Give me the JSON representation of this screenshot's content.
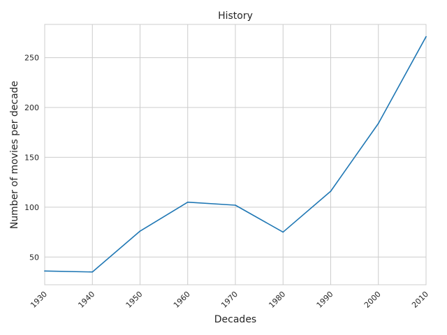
{
  "chart_data": {
    "type": "line",
    "title": "History",
    "xlabel": "Decades",
    "ylabel": "Number of movies per decade",
    "x": [
      1930,
      1940,
      1950,
      1960,
      1970,
      1980,
      1990,
      2000,
      2010
    ],
    "series": [
      {
        "values": [
          36,
          35,
          76,
          105,
          102,
          75,
          116,
          184,
          271
        ]
      }
    ],
    "xlim": [
      1930,
      2010
    ],
    "ylim": [
      22.2,
      283.3
    ],
    "xticks": [
      1930,
      1940,
      1950,
      1960,
      1970,
      1980,
      1990,
      2000,
      2010
    ],
    "xtick_labels": [
      "1930",
      "1940",
      "1950",
      "1960",
      "1970",
      "1980",
      "1990",
      "2000",
      "2010"
    ],
    "yticks": [
      50,
      100,
      150,
      200,
      250
    ],
    "ytick_labels": [
      "50",
      "100",
      "150",
      "200",
      "250"
    ],
    "grid": true,
    "line_color": "#1f77b4",
    "grid_color": "#cccccc"
  }
}
